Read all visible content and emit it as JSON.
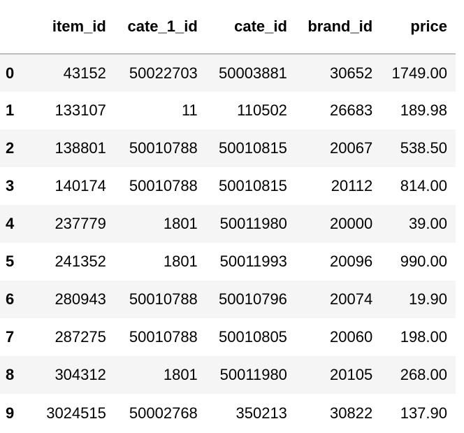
{
  "table": {
    "index_header": "",
    "columns": [
      "item_id",
      "cate_1_id",
      "cate_id",
      "brand_id",
      "price"
    ],
    "rows": [
      {
        "index": "0",
        "cells": [
          "43152",
          "50022703",
          "50003881",
          "30652",
          "1749.00"
        ]
      },
      {
        "index": "1",
        "cells": [
          "133107",
          "11",
          "110502",
          "26683",
          "189.98"
        ]
      },
      {
        "index": "2",
        "cells": [
          "138801",
          "50010788",
          "50010815",
          "20067",
          "538.50"
        ]
      },
      {
        "index": "3",
        "cells": [
          "140174",
          "50010788",
          "50010815",
          "20112",
          "814.00"
        ]
      },
      {
        "index": "4",
        "cells": [
          "237779",
          "1801",
          "50011980",
          "20000",
          "39.00"
        ]
      },
      {
        "index": "5",
        "cells": [
          "241352",
          "1801",
          "50011993",
          "20096",
          "990.00"
        ]
      },
      {
        "index": "6",
        "cells": [
          "280943",
          "50010788",
          "50010796",
          "20074",
          "19.90"
        ]
      },
      {
        "index": "7",
        "cells": [
          "287275",
          "50010788",
          "50010805",
          "20060",
          "198.00"
        ]
      },
      {
        "index": "8",
        "cells": [
          "304312",
          "1801",
          "50011980",
          "20105",
          "268.00"
        ]
      },
      {
        "index": "9",
        "cells": [
          "3024515",
          "50002768",
          "350213",
          "30822",
          "137.90"
        ]
      }
    ]
  }
}
